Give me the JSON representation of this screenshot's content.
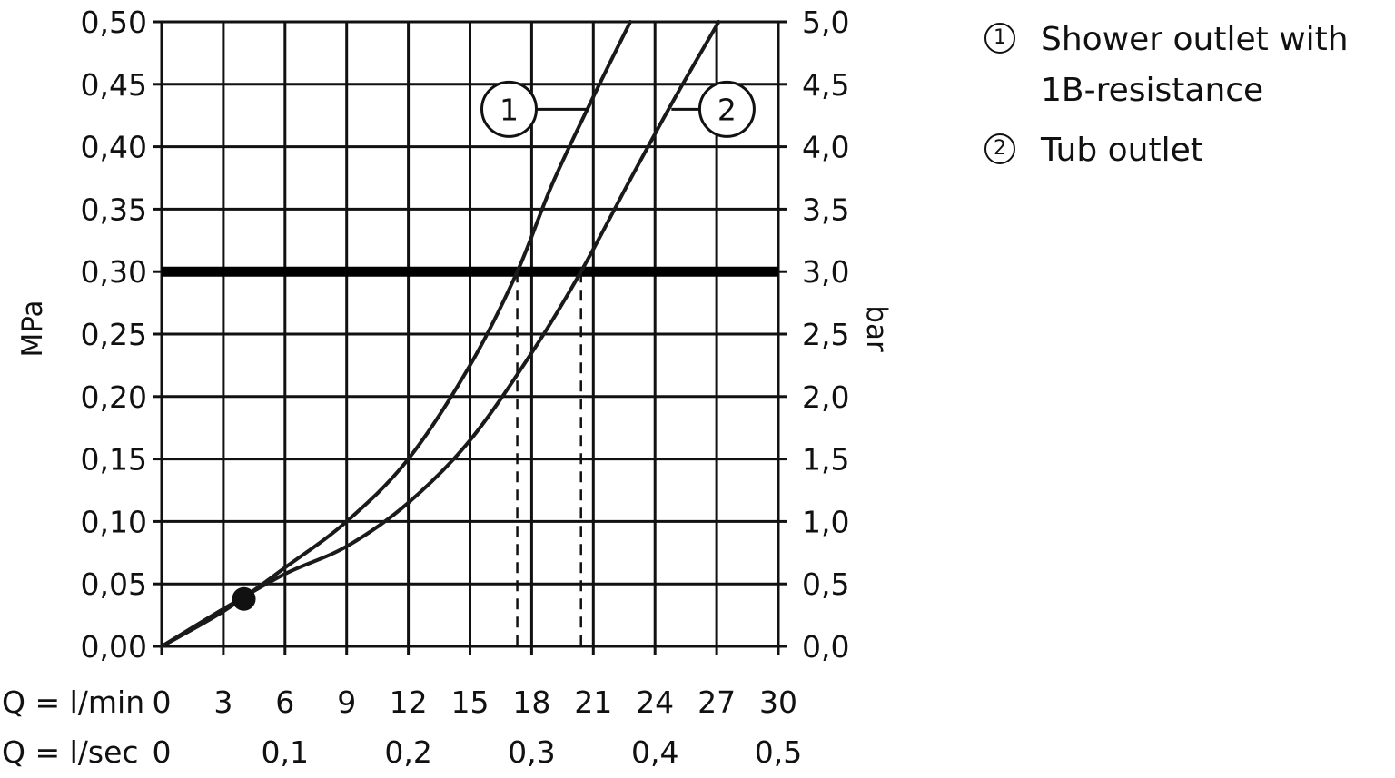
{
  "chart_data": {
    "type": "line",
    "ylabel_left": "MPa",
    "ylabel_right": "bar",
    "xlabel_lmin": "Q = l/min",
    "xlabel_lsec": "Q = l/sec",
    "x_ticks_lmin": [
      "0",
      "3",
      "6",
      "9",
      "12",
      "15",
      "18",
      "21",
      "24",
      "27",
      "30"
    ],
    "x_ticks_lsec": [
      "0",
      "0,1",
      "0,2",
      "0,3",
      "0,4",
      "0,5"
    ],
    "y_ticks_mpa": [
      "0,00",
      "0,05",
      "0,10",
      "0,15",
      "0,20",
      "0,25",
      "0,30",
      "0,35",
      "0,40",
      "0,45",
      "0,50"
    ],
    "y_ticks_bar": [
      "0,0",
      "0,5",
      "1,0",
      "1,5",
      "2,0",
      "2,5",
      "3,0",
      "3,5",
      "4,0",
      "4,5",
      "5,0"
    ],
    "xlim": [
      0,
      30
    ],
    "ylim": [
      0,
      0.5
    ],
    "grid": true,
    "reference_line_mpa": 0.3,
    "marker_point": [
      4,
      0.038
    ],
    "series": [
      {
        "id": "1",
        "name": "Shower outlet with 1B-resistance",
        "x": [
          0,
          3,
          6,
          9,
          12,
          15,
          17.3,
          19,
          21,
          22.8
        ],
        "y": [
          0,
          0.028,
          0.063,
          0.1,
          0.15,
          0.225,
          0.3,
          0.37,
          0.44,
          0.5
        ],
        "flow_at_reference_lmin": 17.3
      },
      {
        "id": "2",
        "name": "Tub outlet",
        "x": [
          0,
          3,
          6,
          9,
          12,
          15,
          18,
          20.4,
          23,
          25,
          27.1
        ],
        "y": [
          0,
          0.03,
          0.058,
          0.08,
          0.115,
          0.165,
          0.235,
          0.3,
          0.38,
          0.44,
          0.5
        ],
        "flow_at_reference_lmin": 20.4
      }
    ]
  },
  "legend": {
    "items": [
      {
        "marker": "1",
        "label": "Shower outlet with 1B-resistance"
      },
      {
        "marker": "2",
        "label": "Tub outlet"
      }
    ]
  }
}
